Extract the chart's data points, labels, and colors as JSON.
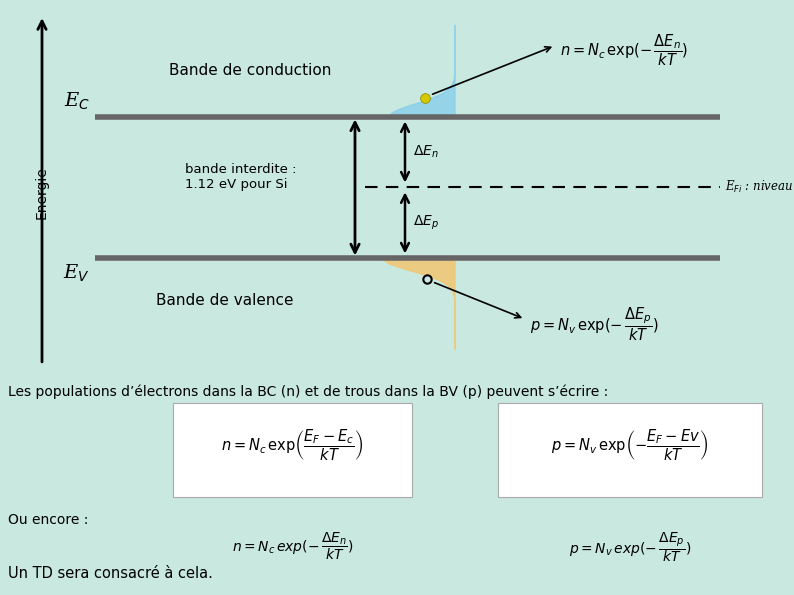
{
  "bg_color": "#c8e8e0",
  "line_color": "#666666",
  "blue_fill": "#87ceeb",
  "orange_fill": "#f0c878",
  "electron_color": "#d4c800",
  "ec_label": "E$_C$",
  "ev_label": "E$_V$",
  "efi_label": "E$_{Fi}$ : niveau de Fermi",
  "bande_conduction_label": "Bande de conduction",
  "bande_valence_label": "Bande de valence",
  "bande_interdite_label": "bande interdite :\n1.12 eV pour Si",
  "energie_label": "Energie",
  "delta_en_label": "$\\Delta E_n$",
  "delta_ep_label": "$\\Delta E_p$",
  "n_formula_top": "$n = N_c\\,\\exp(-\\,\\dfrac{\\Delta E_n}{kT})$",
  "p_formula_top": "$p = N_v\\,\\exp(-\\,\\dfrac{\\Delta E_p}{kT})$",
  "desc_text": "Les populations d’électrons dans la BC (n) et de trous dans la BV (p) peuvent s’écrire :",
  "formula_n_box": "$n = N_c\\,\\exp\\!\\left(\\dfrac{E_F - E_c}{kT}\\right)$",
  "formula_p_box": "$p = N_v\\,\\exp\\!\\left(-\\dfrac{E_F - Ev}{kT}\\right)$",
  "ou_encore_text": "Ou encore :",
  "formula_n_encore": "$n = N_c\\,exp(-\\,\\dfrac{\\Delta E_n}{kT})$",
  "formula_p_encore": "$p = N_v\\,exp(-\\,\\dfrac{\\Delta E_p}{kT})$",
  "un_td_text": "Un TD sera consacré à cela."
}
